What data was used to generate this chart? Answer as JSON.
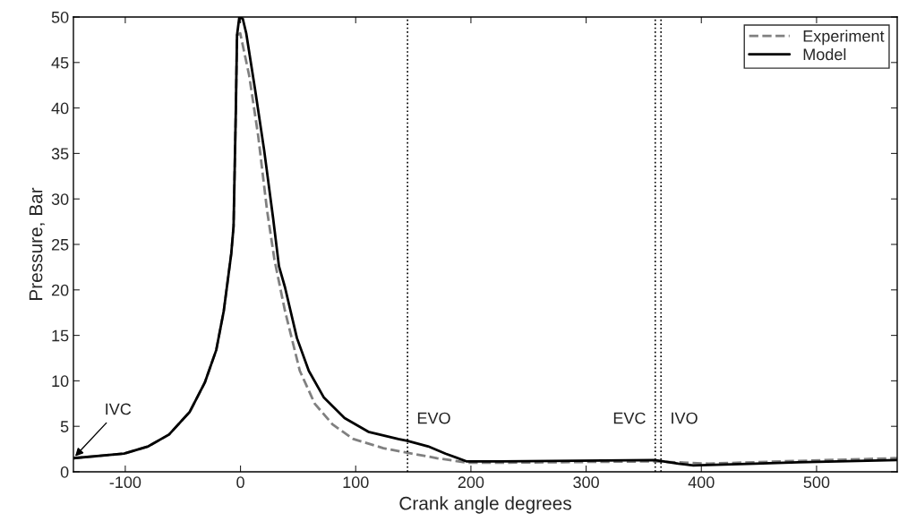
{
  "chart_data": {
    "type": "line",
    "xlabel": "Crank angle degrees",
    "ylabel": "Pressure, Bar",
    "xlim": [
      -145,
      570
    ],
    "ylim": [
      0,
      50
    ],
    "xticks": [
      -100,
      0,
      100,
      200,
      300,
      400,
      500
    ],
    "yticks": [
      0,
      5,
      10,
      15,
      20,
      25,
      30,
      35,
      40,
      45,
      50
    ],
    "grid": false,
    "legend": "top right",
    "marker": "none",
    "series": [
      {
        "name": "Experiment",
        "color": "#808080",
        "line_style": "dashed",
        "x": [
          -145,
          -101,
          -80,
          -62,
          -44,
          -31,
          -21,
          -14.5,
          -8,
          -6,
          -4,
          -3,
          -0.2,
          7.5,
          15.3,
          23,
          29.5,
          38.6,
          51.5,
          64.4,
          80,
          98,
          124,
          144.7,
          170.6,
          196.4,
          225,
          359.5,
          406,
          484,
          570
        ],
        "values": [
          1.5,
          2.0,
          2.8,
          4.1,
          6.6,
          9.8,
          13.4,
          17.7,
          24,
          27,
          40,
          48,
          48.2,
          43.6,
          37,
          28.8,
          23.3,
          17.7,
          11.1,
          7.5,
          5.2,
          3.6,
          2.6,
          2.1,
          1.5,
          1.0,
          1.0,
          1.15,
          0.9,
          1.2,
          1.5
        ]
      },
      {
        "name": "Model",
        "color": "#000000",
        "line_style": "solid",
        "x": [
          -145,
          -101,
          -80,
          -62,
          -44,
          -31,
          -21,
          -14.5,
          -8,
          -6,
          -4,
          -3,
          -1,
          2,
          5,
          12.7,
          20.5,
          28.3,
          33.4,
          38.6,
          49,
          59.3,
          72.2,
          90.4,
          111,
          137,
          144.7,
          162.8,
          178,
          196,
          225,
          359.5,
          380,
          393,
          447,
          484,
          570
        ],
        "values": [
          1.5,
          2.0,
          2.8,
          4.1,
          6.6,
          9.8,
          13.4,
          17.7,
          24,
          27,
          40,
          48,
          50,
          49.8,
          48.2,
          42,
          35.4,
          27.9,
          22.6,
          20.3,
          14.7,
          11.1,
          8.2,
          5.9,
          4.4,
          3.6,
          3.4,
          2.8,
          2.0,
          1.15,
          1.15,
          1.3,
          0.9,
          0.7,
          0.9,
          1.05,
          1.3
        ]
      }
    ],
    "ref_lines": [
      {
        "axis": "x",
        "value": 145,
        "label": "EVO",
        "color": "#000000",
        "line_style": "dotted"
      },
      {
        "axis": "x",
        "value": 360,
        "label": "EVC",
        "color": "#000000",
        "line_style": "dotted"
      },
      {
        "axis": "x",
        "value": 365,
        "label": "IVO",
        "color": "#000000",
        "line_style": "dotted"
      }
    ],
    "annotations": [
      {
        "text": "IVC",
        "x": -145,
        "y": 1.5
      }
    ]
  }
}
